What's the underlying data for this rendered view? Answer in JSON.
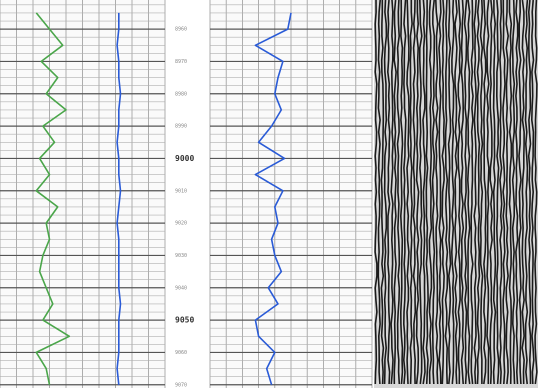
{
  "chart_data": {
    "type": "well-log",
    "ylim": [
      8951,
      9071
    ],
    "yticks": [
      8960,
      8970,
      8980,
      8990,
      9000,
      9010,
      9020,
      9030,
      9040,
      9050,
      9060,
      9070
    ],
    "xlim": [
      0,
      100
    ],
    "depths": [
      8955,
      8960,
      8965,
      8970,
      8975,
      8980,
      8985,
      8990,
      8995,
      9000,
      9005,
      9010,
      9015,
      9020,
      9025,
      9030,
      9035,
      9040,
      9045,
      9050,
      9055,
      9060,
      9065,
      9070
    ],
    "tracks": [
      {
        "series": [
          {
            "color": "#4aa64a",
            "values": [
              22,
              30,
              38,
              25,
              35,
              28,
              40,
              26,
              33,
              24,
              30,
              22,
              35,
              28,
              30,
              26,
              24,
              28,
              32,
              26,
              42,
              22,
              28,
              30
            ]
          },
          {
            "color": "#2a5bd7",
            "values": [
              72,
              72,
              71,
              72,
              72,
              73,
              72,
              72,
              71,
              72,
              72,
              73,
              72,
              71,
              72,
              72,
              72,
              72,
              73,
              72,
              72,
              72,
              71,
              72
            ]
          }
        ]
      },
      {
        "series": [
          {
            "color": "#2a5bd7",
            "values": [
              50,
              48,
              28,
              45,
              42,
              40,
              44,
              38,
              30,
              46,
              28,
              45,
              40,
              42,
              38,
              40,
              44,
              36,
              42,
              28,
              30,
              40,
              35,
              38
            ]
          }
        ]
      }
    ]
  }
}
